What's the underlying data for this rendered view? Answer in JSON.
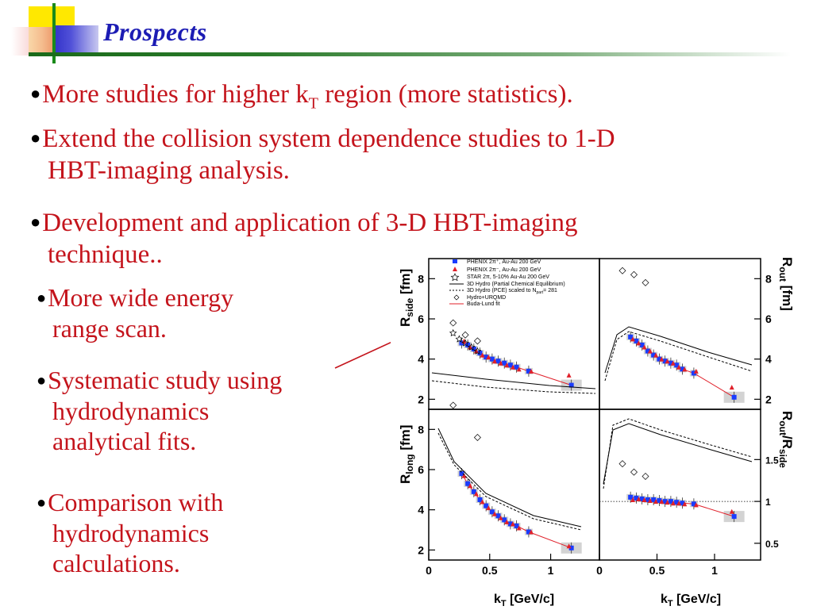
{
  "slide": {
    "title": "Prospects",
    "bullets": [
      {
        "pre": "More studies for higher k",
        "sub": "T",
        "post": " region (more statistics)."
      },
      {
        "line1": "Extend the collision system dependence studies to 1-D",
        "line2": "HBT-imaging analysis."
      },
      {
        "line1": "Development and application of 3-D HBT-imaging",
        "line2": "technique.."
      }
    ],
    "subbullets": [
      {
        "line1": "More wide energy",
        "line2": "range scan."
      },
      {
        "line1": "Systematic study using",
        "line2": "hydrodynamics",
        "line3": "analytical fits."
      },
      {
        "line1": "Comparison with",
        "line2": "hydrodynamics",
        "line3": "calculations."
      }
    ]
  },
  "figure": {
    "legend": [
      "PHENIX 2π⁺, Au-Au 200 GeV",
      "PHENIX 2π⁻, Au-Au 200 GeV",
      "STAR 2π, 5-10% Au-Au 200 GeV",
      "3D Hydro (Partial Chemical Equilibrium)",
      "3D Hydro (PCE) scaled to N",
      "= 281",
      "Hydro+URQMD",
      "Buda-Lund fit"
    ],
    "legend_sub": "part",
    "x_ticks": [
      "0",
      "0.5",
      "1"
    ],
    "xlabel_main": "k",
    "xlabel_sub": "T",
    "xlabel_unit": " [GeV/c]",
    "panel_labels": {
      "side": {
        "main": "R",
        "sub": "side",
        "unit": " [fm]"
      },
      "out": {
        "main": "R",
        "sub": "out",
        "unit": " [fm]"
      },
      "long": {
        "main": "R",
        "sub": "long",
        "unit": " [fm]"
      },
      "ratio": {
        "main": "R",
        "sub": "out",
        "sep": "/R",
        "sub2": "side"
      }
    },
    "ticks_fm": [
      "2",
      "4",
      "6",
      "8"
    ],
    "ticks_ratio": [
      "0.5",
      "1",
      "1.5"
    ]
  },
  "colors": {
    "text_red": "#c4141c",
    "title_blue": "#1c1cb4",
    "phenix_plus": "#1a3cff",
    "phenix_minus": "#e0202a",
    "fit": "#e0202a"
  },
  "chart_data": [
    {
      "type": "scatter",
      "panel": "R_side",
      "xlabel": "k_T [GeV/c]",
      "ylabel": "R_side [fm]",
      "xlim": [
        0,
        1.4
      ],
      "ylim": [
        1.5,
        9
      ],
      "series": [
        {
          "name": "PHENIX 2π⁺, Au-Au 200 GeV",
          "x": [
            0.27,
            0.32,
            0.37,
            0.42,
            0.47,
            0.52,
            0.57,
            0.62,
            0.67,
            0.72,
            0.82,
            1.17
          ],
          "y": [
            4.8,
            4.7,
            4.5,
            4.3,
            4.1,
            4.0,
            3.9,
            3.8,
            3.7,
            3.6,
            3.4,
            2.7
          ]
        },
        {
          "name": "PHENIX 2π⁻, Au-Au 200 GeV",
          "x": [
            0.29,
            0.34,
            0.39,
            0.44,
            0.49,
            0.54,
            0.59,
            0.64,
            0.69,
            0.74,
            0.84,
            1.15
          ],
          "y": [
            4.9,
            4.6,
            4.4,
            4.2,
            4.1,
            3.9,
            3.8,
            3.7,
            3.6,
            3.5,
            3.4,
            3.2
          ]
        },
        {
          "name": "STAR 2π, 5-10% Au-Au 200 GeV",
          "x": [
            0.2,
            0.25,
            0.3,
            0.35,
            0.4
          ],
          "y": [
            5.3,
            5.0,
            4.8,
            4.6,
            4.4
          ]
        },
        {
          "name": "Hydro+URQMD",
          "x": [
            0.2,
            0.3,
            0.4
          ],
          "y": [
            5.8,
            5.2,
            4.9
          ]
        }
      ]
    },
    {
      "type": "scatter",
      "panel": "R_out",
      "xlabel": "k_T [GeV/c]",
      "ylabel": "R_out [fm]",
      "xlim": [
        0,
        1.4
      ],
      "ylim": [
        1.5,
        9
      ],
      "series": [
        {
          "name": "PHENIX 2π⁺, Au-Au 200 GeV",
          "x": [
            0.27,
            0.32,
            0.37,
            0.42,
            0.47,
            0.52,
            0.57,
            0.62,
            0.67,
            0.72,
            0.82,
            1.17
          ],
          "y": [
            5.1,
            4.9,
            4.7,
            4.4,
            4.2,
            4.0,
            3.9,
            3.8,
            3.7,
            3.5,
            3.3,
            2.1
          ]
        },
        {
          "name": "PHENIX 2π⁻, Au-Au 200 GeV",
          "x": [
            0.29,
            0.34,
            0.39,
            0.44,
            0.49,
            0.54,
            0.59,
            0.64,
            0.69,
            0.74,
            0.84,
            1.15
          ],
          "y": [
            5.0,
            4.8,
            4.6,
            4.4,
            4.2,
            4.0,
            3.9,
            3.8,
            3.6,
            3.5,
            3.4,
            2.6
          ]
        },
        {
          "name": "Hydro+URQMD",
          "x": [
            0.2,
            0.3,
            0.4
          ],
          "y": [
            8.4,
            8.2,
            7.8
          ]
        }
      ]
    },
    {
      "type": "scatter",
      "panel": "R_long",
      "xlabel": "k_T [GeV/c]",
      "ylabel": "R_long [fm]",
      "xlim": [
        0,
        1.4
      ],
      "ylim": [
        1.5,
        9
      ],
      "series": [
        {
          "name": "PHENIX 2π⁺, Au-Au 200 GeV",
          "x": [
            0.27,
            0.32,
            0.37,
            0.42,
            0.47,
            0.52,
            0.57,
            0.62,
            0.67,
            0.72,
            0.82,
            1.17
          ],
          "y": [
            5.8,
            5.3,
            4.9,
            4.5,
            4.2,
            3.9,
            3.7,
            3.5,
            3.3,
            3.2,
            2.9,
            2.1
          ]
        },
        {
          "name": "PHENIX 2π⁻, Au-Au 200 GeV",
          "x": [
            0.29,
            0.34,
            0.39,
            0.44,
            0.49,
            0.54,
            0.59,
            0.64,
            0.69,
            0.74,
            0.84,
            1.15
          ],
          "y": [
            5.7,
            5.2,
            4.8,
            4.4,
            4.1,
            3.8,
            3.6,
            3.4,
            3.3,
            3.1,
            2.9,
            2.2
          ]
        },
        {
          "name": "Hydro+URQMD",
          "x": [
            0.2,
            0.4
          ],
          "y": [
            9.2,
            7.6
          ]
        }
      ]
    },
    {
      "type": "scatter",
      "panel": "R_out/R_side",
      "xlabel": "k_T [GeV/c]",
      "ylabel": "R_out/R_side",
      "xlim": [
        0,
        1.4
      ],
      "ylim": [
        0.3,
        2.1
      ],
      "series": [
        {
          "name": "PHENIX 2π⁺, Au-Au 200 GeV",
          "x": [
            0.27,
            0.32,
            0.37,
            0.42,
            0.47,
            0.52,
            0.57,
            0.62,
            0.67,
            0.72,
            0.82,
            1.17
          ],
          "y": [
            1.05,
            1.04,
            1.03,
            1.02,
            1.02,
            1.01,
            1.0,
            1.0,
            0.99,
            0.98,
            0.97,
            0.82
          ]
        },
        {
          "name": "PHENIX 2π⁻, Au-Au 200 GeV",
          "x": [
            0.29,
            0.34,
            0.39,
            0.44,
            0.49,
            0.54,
            0.59,
            0.64,
            0.69,
            0.74,
            0.84,
            1.15
          ],
          "y": [
            1.02,
            1.03,
            1.02,
            1.01,
            1.0,
            1.0,
            0.99,
            0.98,
            0.98,
            0.97,
            0.96,
            0.88
          ]
        },
        {
          "name": "Hydro+URQMD",
          "x": [
            0.2,
            0.3,
            0.4
          ],
          "y": [
            1.45,
            1.35,
            1.3
          ]
        }
      ]
    }
  ]
}
